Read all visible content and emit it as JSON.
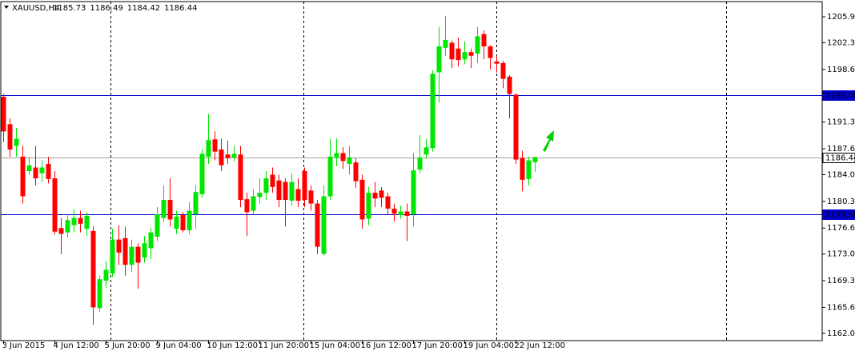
{
  "chart_data": {
    "type": "candlestick",
    "title": "XAUUSD,H4",
    "categories": [
      "3 Jun 2015",
      null,
      null,
      null,
      null,
      null,
      null,
      null,
      "4 Jun 12:00",
      null,
      null,
      null,
      null,
      null,
      null,
      null,
      "5 Jun 20:00",
      null,
      null,
      null,
      null,
      null,
      null,
      null,
      "9 Jun 04:00",
      null,
      null,
      null,
      null,
      null,
      null,
      null,
      "10 Jun 12:00",
      null,
      null,
      null,
      null,
      null,
      null,
      null,
      "11 Jun 20:00",
      null,
      null,
      null,
      null,
      null,
      null,
      null,
      "15 Jun 04:00",
      null,
      null,
      null,
      null,
      null,
      null,
      null,
      "16 Jun 12:00",
      null,
      null,
      null,
      null,
      null,
      null,
      null,
      "17 Jun 20:00",
      null,
      null,
      null,
      null,
      null,
      null,
      null,
      "19 Jun 04:00",
      null,
      null,
      null,
      null,
      null,
      null,
      null,
      "22 Jun 12:00",
      null,
      null,
      null
    ],
    "open": [
      1194.8,
      1191.0,
      1188.0,
      1186.5,
      1184.5,
      1185.0,
      1184.2,
      1185.5,
      1183.5,
      1176.6,
      1176.0,
      1177.0,
      1178.0,
      1176.5,
      1176.2,
      1165.5,
      1169.3,
      1170.3,
      1175.0,
      1175.2,
      1171.5,
      1174.0,
      1172.5,
      1173.8,
      1175.4,
      1178.0,
      1180.5,
      1176.5,
      1178.4,
      1176.3,
      1178.5,
      1181.3,
      1186.5,
      1188.9,
      1187.5,
      1186.8,
      1186.4,
      1186.8,
      1180.6,
      1179.0,
      1180.9,
      1181.5,
      1184.0,
      1183.2,
      1183.0,
      1180.4,
      1182.0,
      1184.5,
      1181.8,
      1180.0,
      1173.0,
      1181.0,
      1186.4,
      1187.0,
      1185.5,
      1185.7,
      1183.3,
      1177.9,
      1181.5,
      1181.8,
      1181.0,
      1179.3,
      1178.4,
      1178.9,
      1178.5,
      1184.7,
      1186.8,
      1187.7,
      1198.2,
      1201.6,
      1202.3,
      1201.5,
      1200.0,
      1201.0,
      1200.8,
      1203.5,
      1201.8,
      1199.7,
      1199.5,
      1197.6,
      1195.1,
      1186.3,
      1183.4,
      1185.73
    ],
    "high": [
      1195.2,
      1191.8,
      1190.5,
      1188.0,
      1186.5,
      1188.0,
      1186.0,
      1186.5,
      1184.5,
      1178.0,
      1178.5,
      1179.2,
      1179.0,
      1178.8,
      1176.8,
      1170.0,
      1172.0,
      1176.5,
      1177.0,
      1176.8,
      1175.0,
      1174.5,
      1175.5,
      1176.6,
      1179.5,
      1182.5,
      1183.5,
      1179.0,
      1178.8,
      1180.2,
      1182.5,
      1187.5,
      1192.4,
      1190.0,
      1189.0,
      1188.7,
      1188.0,
      1188.0,
      1181.5,
      1182.0,
      1183.5,
      1184.5,
      1185.0,
      1184.0,
      1183.5,
      1184.2,
      1183.5,
      1185.0,
      1182.5,
      1180.5,
      1182.5,
      1189.0,
      1189.0,
      1187.8,
      1188.0,
      1186.3,
      1184.0,
      1182.3,
      1183.0,
      1182.3,
      1181.5,
      1180.0,
      1179.7,
      1180.0,
      1187.0,
      1189.5,
      1189.0,
      1198.5,
      1204.5,
      1206.0,
      1202.6,
      1203.0,
      1202.5,
      1201.5,
      1204.5,
      1204.0,
      1202.0,
      1200.5,
      1199.8,
      1197.8,
      1195.3,
      1187.3,
      1186.5,
      1186.49
    ],
    "low": [
      1188.5,
      1186.5,
      1186.5,
      1180.0,
      1184.0,
      1182.5,
      1183.0,
      1182.8,
      1175.7,
      1173.0,
      1175.3,
      1176.0,
      1176.0,
      1175.5,
      1163.2,
      1165.0,
      1168.3,
      1169.8,
      1171.5,
      1170.0,
      1170.5,
      1168.2,
      1171.8,
      1172.3,
      1174.8,
      1177.5,
      1176.8,
      1175.8,
      1176.0,
      1175.8,
      1176.5,
      1180.8,
      1185.5,
      1186.0,
      1184.5,
      1185.5,
      1185.8,
      1179.5,
      1175.5,
      1178.5,
      1180.0,
      1180.5,
      1181.5,
      1179.5,
      1176.8,
      1179.8,
      1179.5,
      1179.5,
      1179.0,
      1173.0,
      1172.8,
      1180.5,
      1185.2,
      1184.8,
      1184.0,
      1182.2,
      1176.5,
      1177.0,
      1179.5,
      1179.5,
      1178.5,
      1177.5,
      1177.9,
      1174.8,
      1176.8,
      1184.2,
      1186.2,
      1187.2,
      1194.0,
      1200.5,
      1198.8,
      1199.0,
      1199.3,
      1198.8,
      1199.5,
      1200.0,
      1198.6,
      1198.2,
      1196.0,
      1191.8,
      1185.5,
      1181.7,
      1182.5,
      1184.42
    ],
    "close": [
      1190.0,
      1187.5,
      1189.0,
      1181.0,
      1185.3,
      1183.5,
      1185.0,
      1183.4,
      1176.1,
      1175.8,
      1177.7,
      1178.0,
      1177.2,
      1178.3,
      1165.6,
      1169.5,
      1170.8,
      1175.0,
      1173.2,
      1171.5,
      1174.0,
      1171.8,
      1174.5,
      1176.0,
      1178.5,
      1180.5,
      1177.8,
      1178.2,
      1176.3,
      1179.0,
      1181.6,
      1186.9,
      1188.8,
      1187.2,
      1185.3,
      1186.3,
      1186.9,
      1180.5,
      1178.8,
      1181.0,
      1181.5,
      1183.5,
      1182.3,
      1180.5,
      1180.5,
      1183.0,
      1180.4,
      1180.5,
      1180.0,
      1174.0,
      1181.0,
      1186.5,
      1187.0,
      1185.9,
      1186.4,
      1183.1,
      1177.8,
      1181.5,
      1180.7,
      1180.8,
      1179.3,
      1178.6,
      1178.9,
      1178.3,
      1184.6,
      1186.4,
      1187.8,
      1198.0,
      1201.8,
      1202.7,
      1200.0,
      1199.9,
      1201.0,
      1200.5,
      1203.2,
      1201.8,
      1200.2,
      1199.4,
      1197.3,
      1195.2,
      1186.1,
      1183.3,
      1186.0,
      1186.44
    ],
    "up_color": "#00e600",
    "down_color": "#ff0000",
    "ylim": [
      1161.1,
      1207.9
    ],
    "yticks": [
      {
        "value": 1205.9,
        "label": "1205.90"
      },
      {
        "value": 1202.3,
        "label": "1202.30"
      },
      {
        "value": 1198.6,
        "label": "1198.60"
      },
      {
        "value": 1191.3,
        "label": "1191.30"
      },
      {
        "value": 1187.6,
        "label": "1187.60"
      },
      {
        "value": 1184,
        "label": "1184.00"
      },
      {
        "value": 1180.3,
        "label": "1180.30"
      },
      {
        "value": 1176.6,
        "label": "1176.60"
      },
      {
        "value": 1173,
        "label": "1173.00"
      },
      {
        "value": 1169.3,
        "label": "1169.30"
      },
      {
        "value": 1165.6,
        "label": "1165.60"
      },
      {
        "value": 1162,
        "label": "1162.00"
      }
    ],
    "hlines": [
      {
        "value": 1195.09,
        "color": "#0000cd"
      },
      {
        "value": {
          "value": 1178.5,
          "label": "1178.50"
        },
        "color": "#0000cd"
      },
      {
        "value": 1186.44,
        "color": "#a0a0a0"
      }
    ]
  }
}
